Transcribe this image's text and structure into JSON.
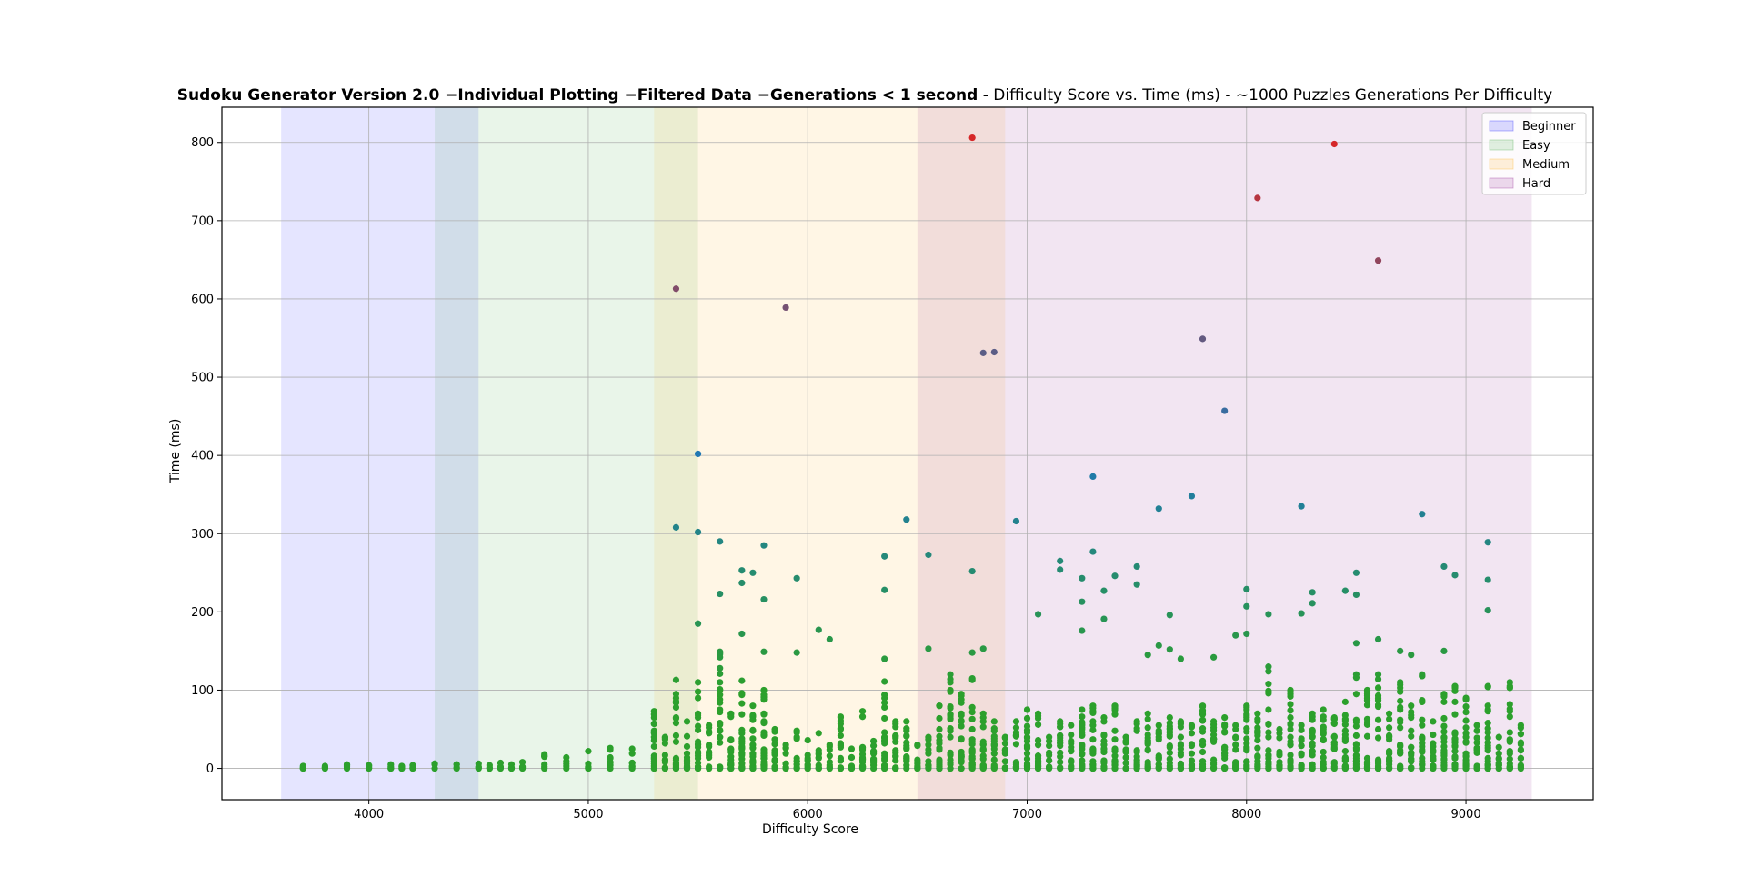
{
  "chart_data": {
    "type": "scatter",
    "title_bold": "Sudoku Generator Version 2.0  −Individual Plotting  −Filtered Data  −Generations  <  1 second",
    "title_rest": " - Difficulty Score vs. Time (ms) - ~1000 Puzzles Generations Per Difficulty",
    "xlabel": "Difficulty Score",
    "ylabel": "Time (ms)",
    "xlim": [
      3330,
      9580
    ],
    "ylim": [
      -40,
      845
    ],
    "xticks": [
      4000,
      5000,
      6000,
      7000,
      8000,
      9000
    ],
    "yticks": [
      0,
      100,
      200,
      300,
      400,
      500,
      600,
      700,
      800
    ],
    "grid": true,
    "legend_position": "top-right",
    "bands": [
      {
        "name": "Beginner",
        "range": [
          3600,
          4500
        ],
        "color": "#0000ff"
      },
      {
        "name": "Easy",
        "range": [
          4300,
          5500
        ],
        "color": "#2ca02c"
      },
      {
        "name": "Medium",
        "range": [
          5300,
          6900
        ],
        "color": "#ffa500"
      },
      {
        "name": "Hard",
        "range": [
          6500,
          9300
        ],
        "color": "#800080"
      }
    ],
    "point_colors": {
      "low": "#2ca02c",
      "mid": "#1f77b4",
      "high": "#d62728"
    },
    "outliers": [
      [
        5400,
        613
      ],
      [
        5900,
        589
      ],
      [
        6750,
        806
      ],
      [
        6800,
        531
      ],
      [
        6850,
        532
      ],
      [
        7800,
        549
      ],
      [
        8050,
        729
      ],
      [
        8400,
        798
      ],
      [
        8600,
        649
      ],
      [
        7900,
        457
      ],
      [
        5500,
        402
      ],
      [
        7300,
        373
      ],
      [
        7750,
        348
      ],
      [
        8250,
        335
      ],
      [
        8800,
        325
      ],
      [
        6450,
        318
      ],
      [
        6950,
        316
      ],
      [
        5400,
        308
      ],
      [
        5500,
        302
      ],
      [
        7600,
        332
      ],
      [
        5600,
        290
      ],
      [
        5800,
        285
      ],
      [
        9100,
        289
      ],
      [
        7300,
        277
      ],
      [
        6550,
        273
      ],
      [
        6350,
        271
      ],
      [
        7150,
        265
      ],
      [
        7500,
        258
      ],
      [
        8900,
        258
      ],
      [
        5700,
        253
      ],
      [
        5750,
        250
      ],
      [
        6750,
        252
      ],
      [
        8500,
        250
      ],
      [
        8950,
        247
      ],
      [
        7150,
        254
      ],
      [
        7400,
        246
      ],
      [
        5950,
        243
      ],
      [
        7250,
        243
      ],
      [
        9100,
        241
      ],
      [
        5700,
        237
      ],
      [
        7500,
        235
      ],
      [
        6350,
        228
      ],
      [
        7350,
        227
      ],
      [
        8450,
        227
      ],
      [
        8300,
        225
      ],
      [
        5600,
        223
      ],
      [
        8000,
        229
      ],
      [
        8500,
        222
      ],
      [
        5800,
        216
      ],
      [
        7250,
        213
      ],
      [
        8300,
        211
      ],
      [
        8000,
        207
      ],
      [
        9100,
        202
      ],
      [
        7050,
        197
      ],
      [
        7650,
        196
      ],
      [
        8250,
        198
      ],
      [
        8100,
        197
      ],
      [
        7350,
        191
      ],
      [
        5500,
        185
      ],
      [
        6050,
        177
      ],
      [
        7250,
        176
      ],
      [
        5700,
        172
      ],
      [
        7950,
        170
      ],
      [
        8000,
        172
      ],
      [
        6100,
        165
      ],
      [
        8600,
        165
      ],
      [
        8500,
        160
      ],
      [
        7600,
        157
      ],
      [
        6550,
        153
      ],
      [
        6800,
        153
      ],
      [
        7650,
        152
      ],
      [
        5600,
        149
      ],
      [
        5800,
        149
      ],
      [
        5950,
        148
      ],
      [
        6750,
        148
      ],
      [
        8700,
        150
      ],
      [
        8750,
        145
      ],
      [
        8900,
        150
      ],
      [
        7550,
        145
      ],
      [
        7700,
        140
      ],
      [
        7850,
        142
      ]
    ],
    "cluster": {
      "x_values": [
        3700,
        3800,
        3900,
        4000,
        4100,
        4150,
        4200,
        4300,
        4400,
        4500,
        4550,
        4600,
        4650,
        4700,
        4800,
        4900,
        5000,
        5100,
        5200,
        5300,
        5350,
        5400,
        5450,
        5500,
        5550,
        5600,
        5650,
        5700,
        5750,
        5800,
        5850,
        5900,
        5950,
        6000,
        6050,
        6100,
        6150,
        6200,
        6250,
        6300,
        6350,
        6400,
        6450,
        6500,
        6550,
        6600,
        6650,
        6700,
        6750,
        6800,
        6850,
        6900,
        6950,
        7000,
        7050,
        7100,
        7150,
        7200,
        7250,
        7300,
        7350,
        7400,
        7450,
        7500,
        7550,
        7600,
        7650,
        7700,
        7750,
        7800,
        7850,
        7900,
        7950,
        8000,
        8050,
        8100,
        8150,
        8200,
        8250,
        8300,
        8350,
        8400,
        8450,
        8500,
        8550,
        8600,
        8650,
        8700,
        8750,
        8800,
        8850,
        8900,
        8950,
        9000,
        9050,
        9100,
        9150,
        9200,
        9250
      ],
      "max_values": [
        3,
        3,
        5,
        4,
        5,
        3,
        4,
        6,
        5,
        6,
        4,
        7,
        5,
        8,
        18,
        14,
        22,
        26,
        25,
        73,
        40,
        113,
        60,
        110,
        55,
        148,
        70,
        112,
        80,
        100,
        50,
        30,
        48,
        36,
        45,
        30,
        66,
        25,
        73,
        35,
        140,
        60,
        60,
        30,
        40,
        80,
        120,
        95,
        115,
        70,
        60,
        40,
        60,
        75,
        70,
        40,
        60,
        55,
        75,
        80,
        65,
        80,
        40,
        60,
        70,
        55,
        65,
        60,
        55,
        80,
        60,
        65,
        55,
        80,
        70,
        130,
        50,
        100,
        55,
        70,
        75,
        65,
        85,
        120,
        100,
        120,
        70,
        110,
        80,
        120,
        60,
        95,
        105,
        90,
        55,
        105,
        40,
        110,
        55
      ]
    }
  },
  "legend": [
    {
      "label": "Beginner",
      "color": "#0000ff"
    },
    {
      "label": "Easy",
      "color": "#2ca02c"
    },
    {
      "label": "Medium",
      "color": "#ffa500"
    },
    {
      "label": "Hard",
      "color": "#800080"
    }
  ]
}
